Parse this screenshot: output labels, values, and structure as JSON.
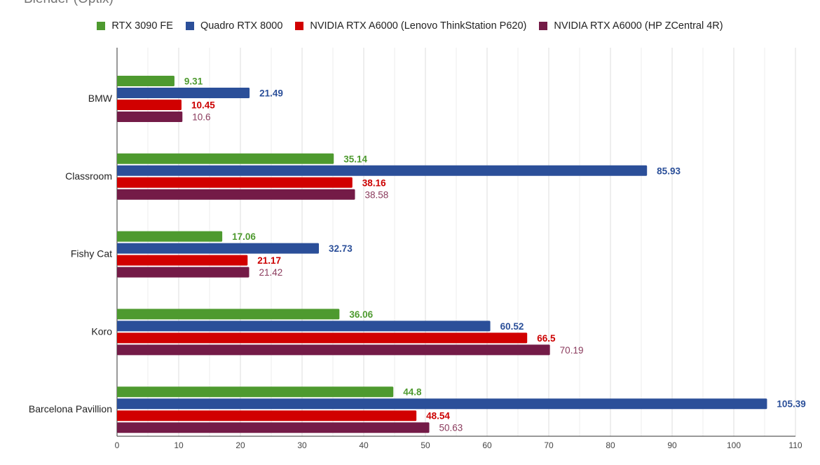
{
  "chart_data": {
    "type": "bar",
    "orientation": "horizontal",
    "title": "Blender (Optix)",
    "categories": [
      "BMW",
      "Classroom",
      "Fishy Cat",
      "Koro",
      "Barcelona Pavillion"
    ],
    "series": [
      {
        "name": "RTX 3090 FE",
        "color": "#4e9a2f",
        "label_color": "#4e9a2f",
        "label_bold": true,
        "values": [
          9.31,
          35.14,
          17.06,
          36.06,
          44.8
        ]
      },
      {
        "name": "Quadro RTX 8000",
        "color": "#2b4f99",
        "label_color": "#2b4f99",
        "label_bold": true,
        "values": [
          21.49,
          85.93,
          32.73,
          60.52,
          105.39
        ]
      },
      {
        "name": "NVIDIA RTX A6000 (Lenovo ThinkStation P620)",
        "color": "#d10000",
        "label_color": "#cc0000",
        "label_bold": true,
        "values": [
          10.45,
          38.16,
          21.17,
          66.5,
          48.54
        ]
      },
      {
        "name": "NVIDIA RTX A6000 (HP ZCentral 4R)",
        "color": "#741b47",
        "label_color": "#8a3a5c",
        "label_bold": false,
        "values": [
          10.6,
          38.58,
          21.42,
          70.19,
          50.63
        ]
      }
    ],
    "data_labels": [
      [
        "9.31",
        "21.49",
        "10.45",
        "10.6"
      ],
      [
        "35.14",
        "85.93",
        "38.16",
        "38.58"
      ],
      [
        "17.06",
        "32.73",
        "21.17",
        "21.42"
      ],
      [
        "36.06",
        "60.52",
        "66.5",
        "70.19"
      ],
      [
        "44.8",
        "105.39",
        "48.54",
        "50.63"
      ]
    ],
    "xlim": [
      0,
      110
    ],
    "x_ticks": [
      "0",
      "10",
      "20",
      "30",
      "40",
      "50",
      "60",
      "70",
      "80",
      "90",
      "100",
      "110"
    ],
    "grid": true,
    "legend_position": "top"
  }
}
